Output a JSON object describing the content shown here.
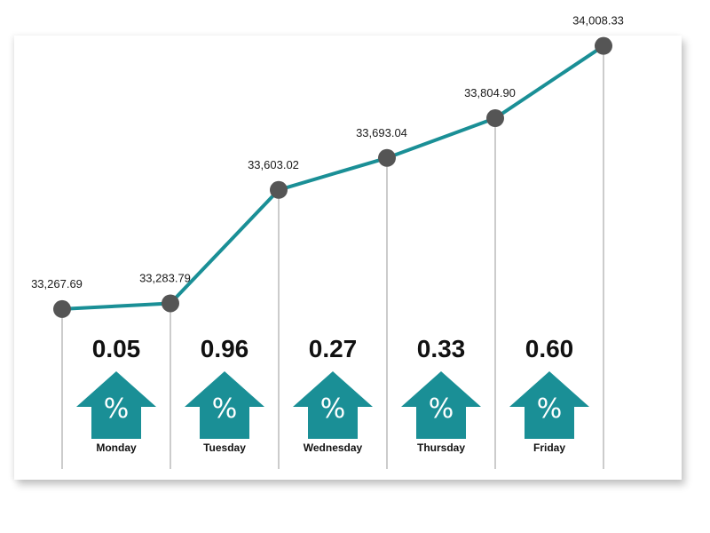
{
  "chart_data": {
    "type": "line",
    "categories": [
      "Monday",
      "Tuesday",
      "Wednesday",
      "Thursday",
      "Friday"
    ],
    "x": [
      "",
      "",
      "",
      "",
      "",
      ""
    ],
    "values": [
      33267.69,
      33283.79,
      33603.02,
      33693.04,
      33804.9,
      34008.33
    ],
    "value_labels": [
      "33,267.69",
      "33,283.79",
      "33,603.02",
      "33,693.04",
      "33,804.90",
      "34,008.33"
    ],
    "daily_change": [
      "0.05",
      "0.96",
      "0.27",
      "0.33",
      "0.60"
    ],
    "change_symbol": "%",
    "ylim": [
      33150,
      34050
    ],
    "grid": false,
    "colors": {
      "line": "#1a8f96",
      "marker": "#555555",
      "arrow": "#1a8f96",
      "drop_line": "#999999"
    }
  }
}
